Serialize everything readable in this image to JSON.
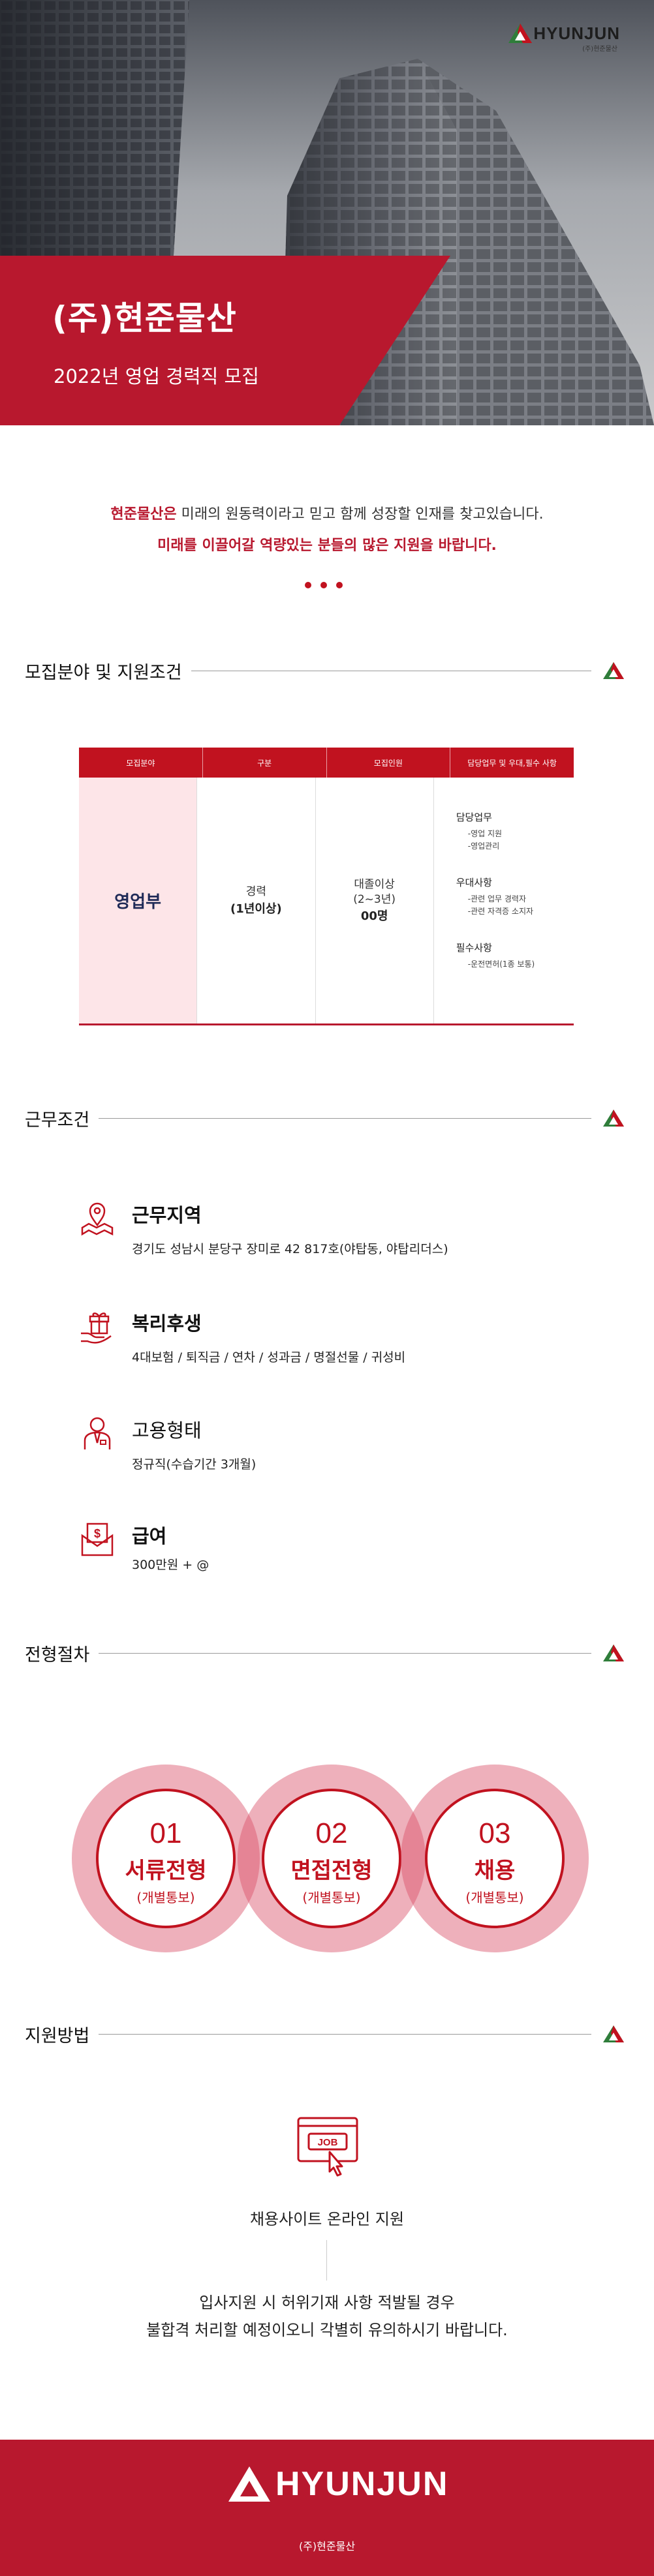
{
  "header": {
    "logo_word": "HYUNJUN",
    "logo_sub": "(주)현준물산",
    "company": "(주)현준물산",
    "subtitle": "2022년 영업 경력직 모집"
  },
  "intro": {
    "company_highlight": "현준물산은",
    "line1_rest": " 미래의 원동력이라고 믿고 함께 성장할 인재를 찾고있습니다.",
    "line2": "미래를 이끌어갈 역량있는 분들의 많은 지원을 바랍니다."
  },
  "sections": {
    "recruit": "모집분야 및 지원조건",
    "work": "근무조건",
    "process": "전형절차",
    "apply": "지원방법"
  },
  "table": {
    "headers": [
      "모집분야",
      "구분",
      "모집인원",
      "담당업무 및 우대,필수 사항"
    ],
    "field": "영업부",
    "career": "경력",
    "career_years": "(1년이상)",
    "edu": "대졸이상",
    "edu_years": "(2~3년)",
    "count": "00명",
    "duties": {
      "title": "담당업무",
      "items": [
        "-영업 지원",
        "-영업관리"
      ]
    },
    "preferred": {
      "title": "우대사항",
      "items": [
        "-관련 업무 경력자",
        "-관련 자격증 소지자"
      ]
    },
    "required": {
      "title": "필수사항",
      "items": [
        "-운전면허(1종 보통)"
      ]
    }
  },
  "work": {
    "location_title": "근무지역",
    "location_text": "경기도 성남시 분당구 장미로 42 817호(야탑동, 야탑리더스)",
    "benefit_title": "복리후생",
    "benefit_text": "4대보험 / 퇴직금 / 연차 / 성과금 / 명절선물 / 귀성비",
    "employment_title": "고용형태",
    "employment_text": "정규직(수습기간 3개월)",
    "salary_title": "급여",
    "salary_text": "300만원 + @"
  },
  "process": [
    {
      "num": "01",
      "name": "서류전형",
      "note": "(개별통보)"
    },
    {
      "num": "02",
      "name": "면접전형",
      "note": "(개별통보)"
    },
    {
      "num": "03",
      "name": "채용",
      "note": "(개별통보)"
    }
  ],
  "apply": {
    "icon_text": "JOB",
    "label": "채용사이트 온라인 지원",
    "notice1": "입사지원 시 허위기재 사항 적발될 경우",
    "notice2": "불합격 처리할 예정이오니 각별히 유의하시기 바랍니다."
  },
  "footer": {
    "logo_word": "HYUNJUN",
    "logo_sub": "(주)현준물산"
  },
  "colors": {
    "brand_red": "#b8182e",
    "accent_red": "#c1121f",
    "pink_cell": "#fde5e8",
    "logo_green": "#2f7d3a"
  }
}
